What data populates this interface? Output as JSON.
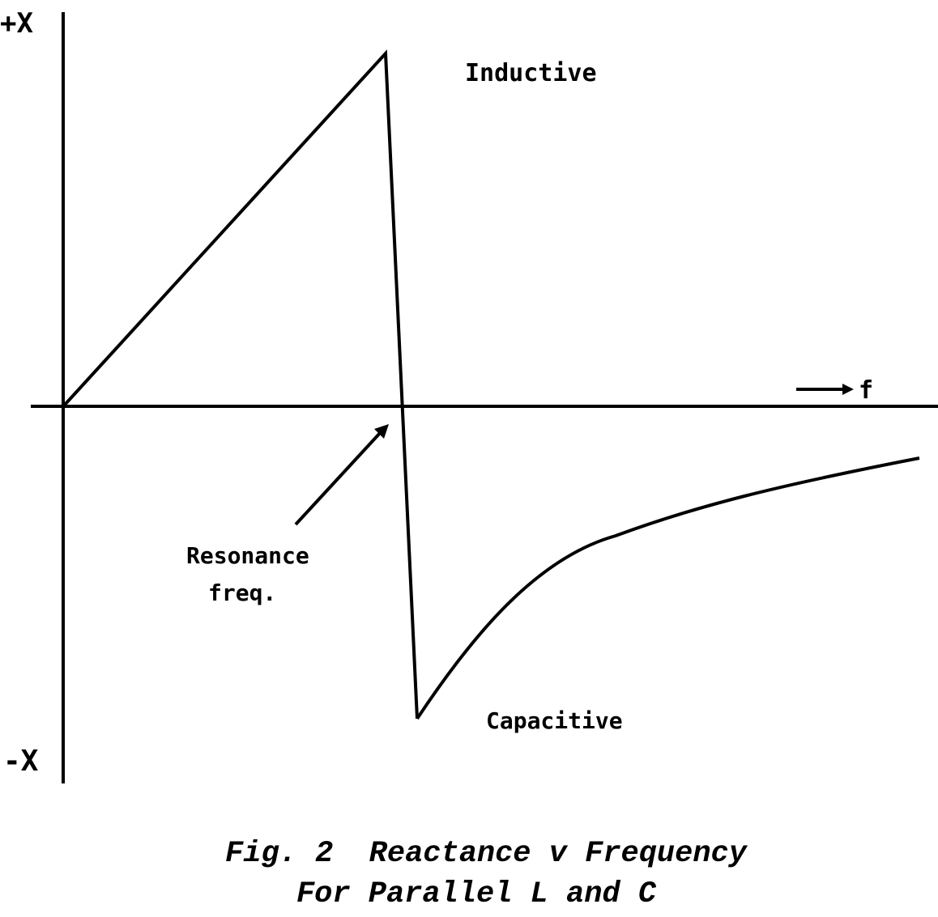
{
  "axes": {
    "y_positive_label": "+X",
    "y_negative_label": "-X",
    "x_label": "f"
  },
  "regions": {
    "upper": "Inductive",
    "lower": "Capacitive"
  },
  "annotation": {
    "line1": "Resonance",
    "line2": "freq."
  },
  "caption": {
    "line1": "Fig. 2  Reactance v Frequency",
    "line2": "For Parallel L and C"
  },
  "colors": {
    "ink": "#000000",
    "background": "#ffffff"
  }
}
